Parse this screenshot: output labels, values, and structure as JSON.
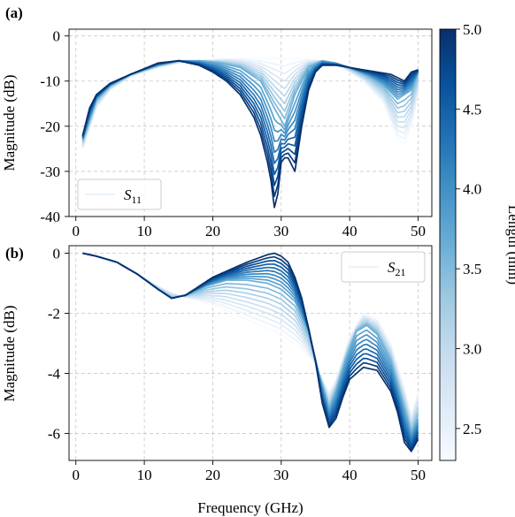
{
  "figure": {
    "shared_xlabel": "Frequency (GHz)",
    "colorbar": {
      "label": "Length (mm)",
      "range": [
        2.3,
        5.0
      ],
      "ticks": [
        2.5,
        3.0,
        3.5,
        4.0,
        4.5,
        5.0
      ],
      "tick_labels": [
        "2.5",
        "3.0",
        "3.5",
        "4.0",
        "4.5",
        "5.0"
      ],
      "colormap": "Blues",
      "color_light": "#f7fbff",
      "color_dark": "#08306b"
    }
  },
  "chart_data": [
    {
      "type": "line",
      "panel_label": "(a)",
      "title": "",
      "xlabel": "",
      "ylabel": "Magnitude (dB)",
      "xlim": [
        -1,
        52
      ],
      "ylim": [
        -40,
        1.5
      ],
      "xticks": [
        0,
        10,
        20,
        30,
        40,
        50
      ],
      "yticks": [
        0,
        -10,
        -20,
        -30,
        -40
      ],
      "grid": true,
      "legend": {
        "entry": "S11",
        "main": "S",
        "sub": "11",
        "placement": "lower-left"
      },
      "series_parameter": "Length (mm)",
      "series": [
        {
          "length_mm": 2.3,
          "x": [
            1,
            3,
            5,
            8,
            12,
            15,
            18,
            22,
            26,
            30,
            33,
            36,
            39,
            42,
            45,
            47,
            48,
            49,
            50
          ],
          "y": [
            -25,
            -16,
            -12,
            -9,
            -7,
            -6,
            -5.5,
            -5,
            -5,
            -5,
            -5,
            -5.5,
            -7,
            -10,
            -15,
            -23,
            -24,
            -20,
            -13
          ]
        },
        {
          "length_mm": 3.65,
          "x": [
            1,
            3,
            5,
            8,
            12,
            15,
            18,
            21,
            24,
            27,
            29,
            30.5,
            32,
            34,
            36,
            38,
            40,
            43,
            45,
            47,
            49,
            50
          ],
          "y": [
            -23,
            -14,
            -11,
            -8.5,
            -6.5,
            -5.5,
            -5.5,
            -6,
            -7,
            -10,
            -16,
            -20,
            -13,
            -7,
            -5.5,
            -6,
            -7,
            -9,
            -11,
            -14,
            -12,
            -8
          ]
        },
        {
          "length_mm": 5.0,
          "x": [
            1,
            2,
            3,
            5,
            8,
            12,
            15,
            18,
            20,
            22,
            24,
            26,
            27,
            28,
            28.5,
            29,
            29.5,
            30,
            30.5,
            31,
            32,
            33,
            34,
            35,
            36,
            38,
            40,
            42,
            44,
            46,
            48,
            49,
            50
          ],
          "y": [
            -22,
            -16,
            -13,
            -10.5,
            -8.5,
            -6,
            -5.5,
            -6.5,
            -8,
            -10,
            -13,
            -18,
            -22,
            -28,
            -32,
            -38,
            -35,
            -28,
            -27,
            -27,
            -30,
            -20,
            -12,
            -8,
            -6.5,
            -6.5,
            -7,
            -7.5,
            -8,
            -8.5,
            -10,
            -8,
            -7.5
          ]
        }
      ]
    },
    {
      "type": "line",
      "panel_label": "(b)",
      "title": "",
      "xlabel": "Frequency (GHz)",
      "ylabel": "Magnitude (dB)",
      "xlim": [
        -1,
        52
      ],
      "ylim": [
        -6.9,
        0.25
      ],
      "xticks": [
        0,
        10,
        20,
        30,
        40,
        50
      ],
      "yticks": [
        0,
        -2,
        -4,
        -6
      ],
      "grid": true,
      "legend": {
        "entry": "S21",
        "main": "S",
        "sub": "21",
        "placement": "upper-right"
      },
      "series_parameter": "Length (mm)",
      "series": [
        {
          "length_mm": 2.3,
          "x": [
            1,
            3,
            6,
            9,
            12,
            15,
            18,
            21,
            24,
            27,
            30,
            33,
            35,
            36,
            37,
            38,
            39,
            40,
            42,
            44,
            46,
            48,
            49,
            50
          ],
          "y": [
            0,
            -0.1,
            -0.3,
            -0.7,
            -1.1,
            -1.4,
            -1.6,
            -1.8,
            -2.1,
            -2.4,
            -2.7,
            -3.2,
            -3.7,
            -4.2,
            -4.6,
            -4.2,
            -3.5,
            -2.8,
            -2.0,
            -2.2,
            -3.0,
            -4.5,
            -5.4,
            -4.6
          ]
        },
        {
          "length_mm": 3.65,
          "x": [
            1,
            3,
            6,
            9,
            12,
            14,
            16,
            19,
            22,
            25,
            28,
            30,
            32,
            34,
            35.5,
            37,
            38,
            39.5,
            41,
            42.5,
            44,
            46,
            48,
            49,
            50
          ],
          "y": [
            0,
            -0.1,
            -0.3,
            -0.7,
            -1.2,
            -1.5,
            -1.4,
            -1.1,
            -0.9,
            -0.9,
            -1.0,
            -1.2,
            -1.6,
            -2.6,
            -4.0,
            -5.2,
            -4.6,
            -3.5,
            -2.6,
            -2.4,
            -2.7,
            -3.6,
            -5.2,
            -6.0,
            -5.5
          ]
        },
        {
          "length_mm": 5.0,
          "x": [
            1,
            3,
            6,
            9,
            12,
            14,
            16,
            18,
            20,
            22,
            25,
            28,
            29,
            30,
            31,
            32,
            33,
            34,
            35,
            36,
            37,
            38,
            39,
            40,
            42,
            44,
            46,
            47,
            48,
            49,
            50
          ],
          "y": [
            0,
            -0.1,
            -0.3,
            -0.7,
            -1.2,
            -1.5,
            -1.4,
            -1.1,
            -0.8,
            -0.6,
            -0.3,
            -0.05,
            0,
            -0.1,
            -0.3,
            -0.8,
            -1.5,
            -2.5,
            -3.6,
            -5.0,
            -5.8,
            -5.5,
            -4.8,
            -4.2,
            -3.8,
            -3.9,
            -4.6,
            -5.3,
            -6.3,
            -6.6,
            -6.2
          ]
        }
      ]
    }
  ]
}
